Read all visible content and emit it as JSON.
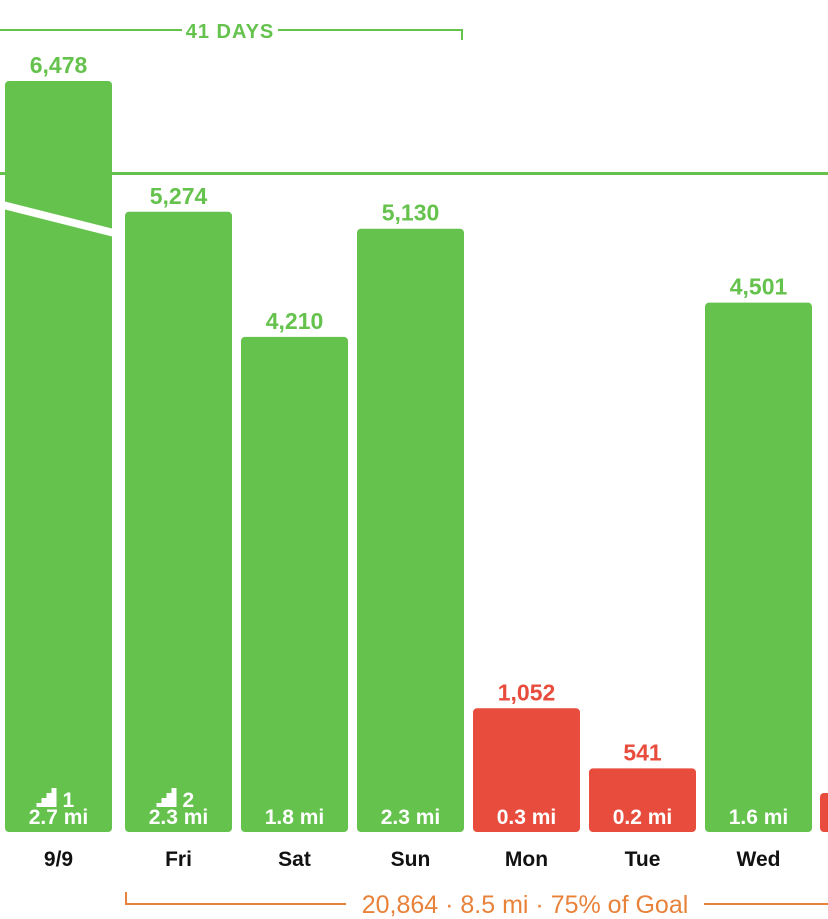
{
  "chart_data": {
    "type": "bar",
    "categories": [
      "9/9",
      "Fri",
      "Sat",
      "Sun",
      "Mon",
      "Tue",
      "Wed"
    ],
    "values": [
      6478,
      5274,
      4210,
      5130,
      1052,
      541,
      4501
    ],
    "value_labels": [
      "6,478",
      "5,274",
      "4,210",
      "5,130",
      "1,052",
      "541",
      "4,501"
    ],
    "distances": [
      "2.7 mi",
      "2.3 mi",
      "1.8 mi",
      "2.3 mi",
      "0.3 mi",
      "0.2 mi",
      "1.6 mi"
    ],
    "floors": [
      "1",
      "2",
      "",
      "",
      "",
      "",
      ""
    ],
    "goal": 5600,
    "ylim": [
      0,
      6478
    ],
    "broken_axis_first_bar": true,
    "grid": false,
    "streak_label": "41 DAYS",
    "summary_label": "20,864 · 8.5 mi · 75% of Goal",
    "colors": {
      "above_goal": "#64c24d",
      "below_goal": "#e74c3c",
      "summary": "#e8823a",
      "goal_line": "#64c24d",
      "day_label": "#111111"
    }
  }
}
